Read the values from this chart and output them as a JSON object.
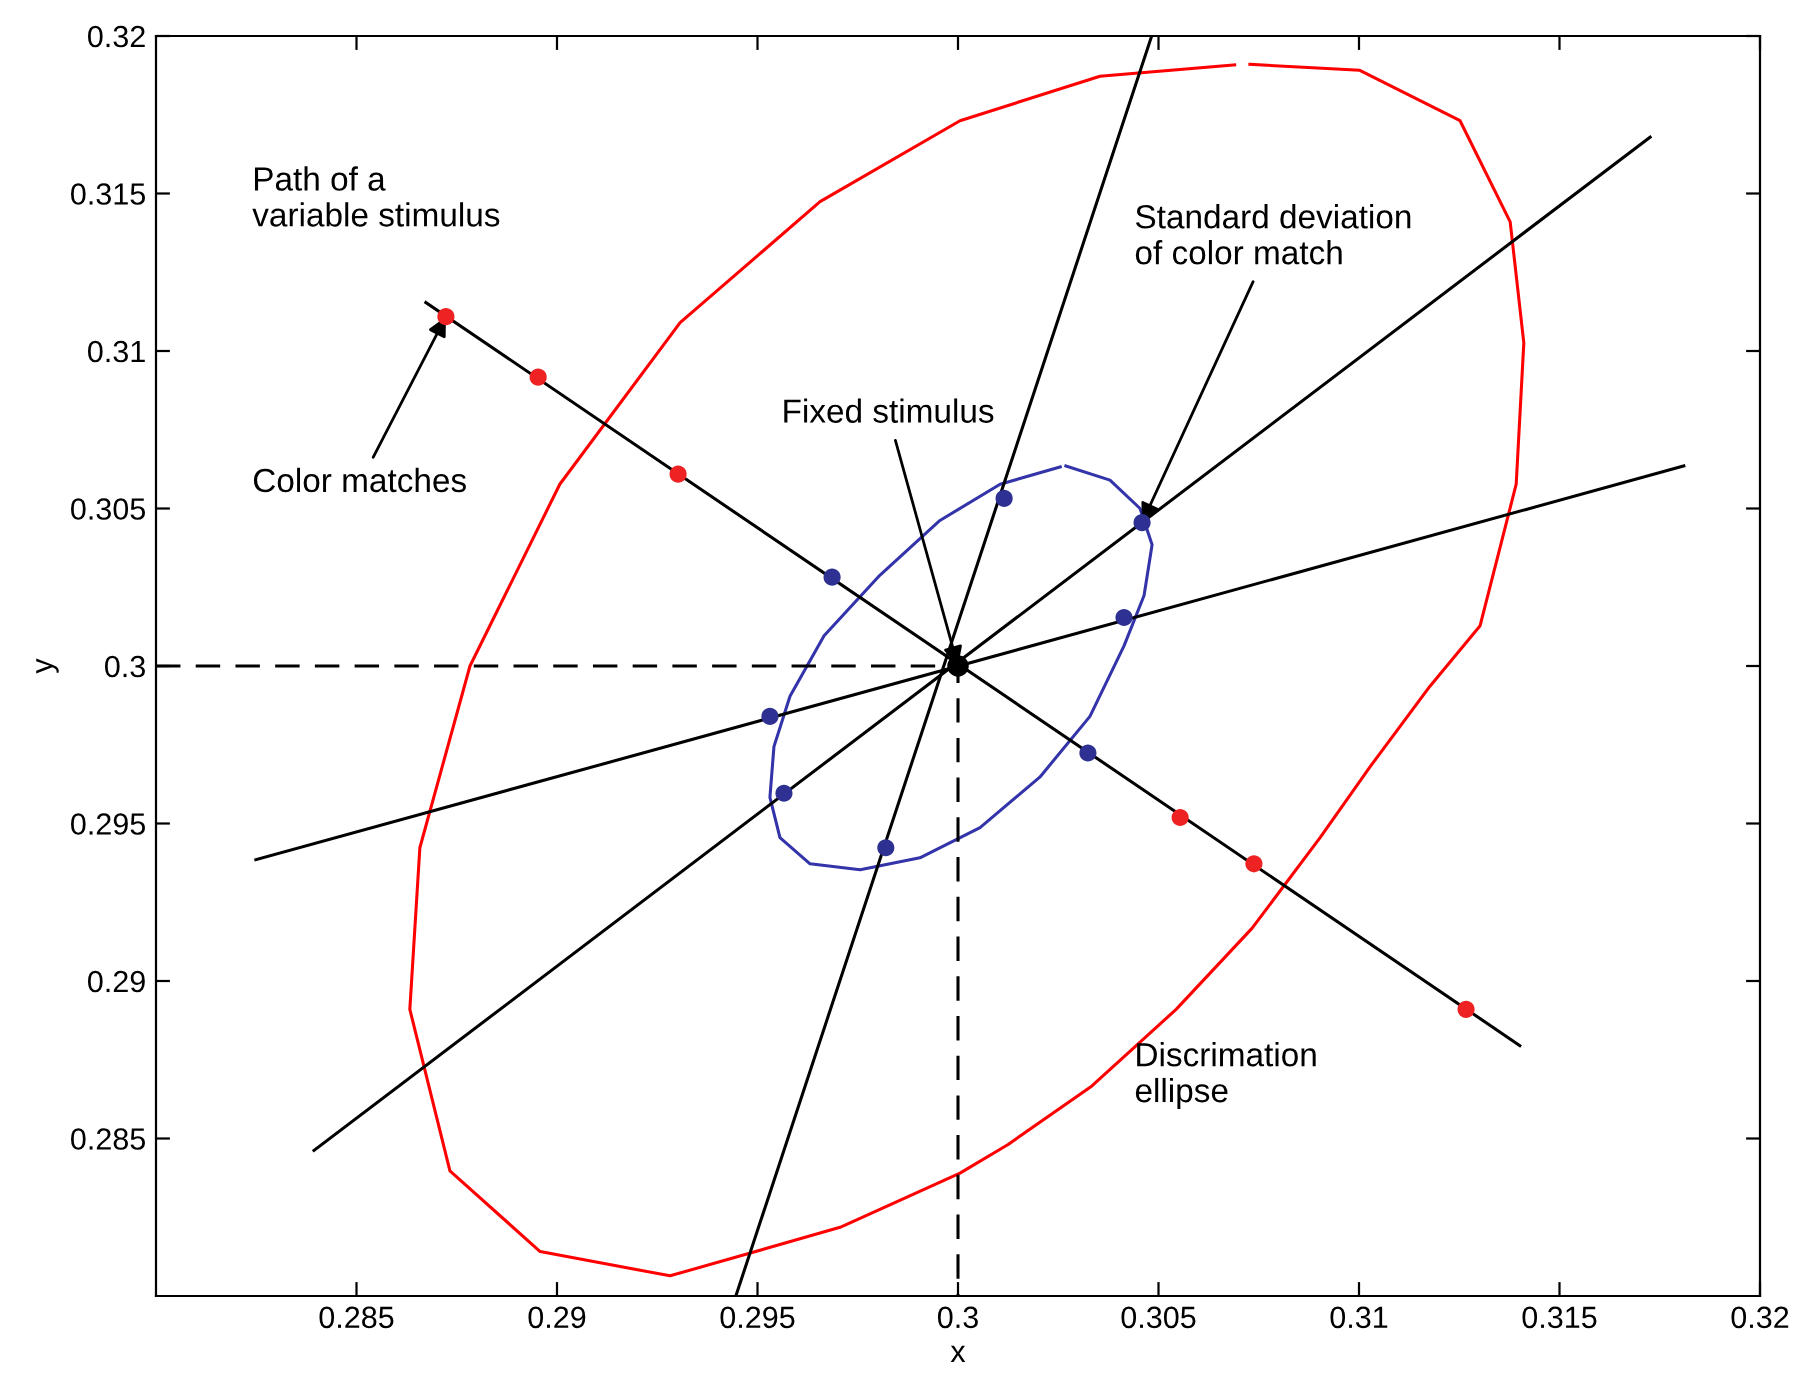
{
  "chart_data": {
    "type": "line",
    "xlabel": "x",
    "ylabel": "y",
    "xlim": [
      0.28,
      0.32
    ],
    "ylim": [
      0.28,
      0.32
    ],
    "xticks": [
      0.285,
      0.29,
      0.295,
      0.3,
      0.305,
      0.31,
      0.315,
      0.32
    ],
    "yticks": [
      0.285,
      0.29,
      0.295,
      0.3,
      0.305,
      0.31,
      0.315,
      0.32
    ],
    "grid": false,
    "series": [
      {
        "color": "#ff0000",
        "marker": "none",
        "line_style": "solid",
        "x": [
          0.30728,
          0.31002,
          0.31252,
          0.31377,
          0.31411,
          0.31392,
          0.31302,
          0.31177,
          0.31027,
          0.30903,
          0.30733,
          0.30544,
          0.30334,
          0.30125,
          0.30005,
          0.29706,
          0.29282,
          0.28958,
          0.28733,
          0.28633,
          0.28658,
          0.28783,
          0.29007,
          0.29307,
          0.29656,
          0.30005,
          0.30354,
          0.3069
        ],
        "values": [
          0.3191,
          0.31891,
          0.31731,
          0.3141,
          0.31026,
          0.30577,
          0.30128,
          0.29936,
          0.29679,
          0.29455,
          0.29167,
          0.2891,
          0.28667,
          0.28481,
          0.2839,
          0.28218,
          0.28064,
          0.28141,
          0.28397,
          0.2891,
          0.29423,
          0.3,
          0.30577,
          0.3109,
          0.31474,
          0.31731,
          0.31872,
          0.31908
        ]
      },
      {
        "color": "#3333aa",
        "marker": "none",
        "line_style": "solid",
        "x": [
          0.30269,
          0.30379,
          0.30454,
          0.30484,
          0.30464,
          0.30414,
          0.30329,
          0.30204,
          0.30055,
          0.29905,
          0.29756,
          0.29631,
          0.29556,
          0.29531,
          0.29541,
          0.29581,
          0.29666,
          0.29805,
          0.29955,
          0.30105,
          0.30255
        ],
        "values": [
          0.30635,
          0.3059,
          0.305,
          0.30385,
          0.30224,
          0.30064,
          0.2984,
          0.29647,
          0.29487,
          0.29391,
          0.29353,
          0.29372,
          0.29455,
          0.29583,
          0.29744,
          0.29904,
          0.30096,
          0.30288,
          0.30462,
          0.30577,
          0.30632
        ]
      },
      {
        "color": "#000000",
        "marker": "none",
        "line_style": "solid",
        "x": [
          0.28673,
          0.31401
        ],
        "values": [
          0.31154,
          0.28795
        ]
      },
      {
        "color": "#000000",
        "marker": "none",
        "line_style": "solid",
        "x": [
          0.28394,
          0.31726
        ],
        "values": [
          0.28462,
          0.31679
        ]
      },
      {
        "color": "#000000",
        "marker": "none",
        "line_style": "solid",
        "x": [
          0.28249,
          0.3181
        ],
        "values": [
          0.29385,
          0.30635
        ]
      },
      {
        "color": "#000000",
        "marker": "none",
        "line_style": "solid",
        "x": [
          0.29446,
          0.30483
        ],
        "values": [
          0.28,
          0.32
        ]
      },
      {
        "color": "#000000",
        "marker": "none",
        "line_style": "dashed",
        "x": [
          0.28,
          0.3,
          0.3
        ],
        "values": [
          0.3,
          0.3,
          0.28
        ]
      },
      {
        "type": "scatter",
        "color": "#ee2222",
        "marker": "circle",
        "x": [
          0.28723,
          0.28953,
          0.29302,
          0.30554,
          0.30738,
          0.31267
        ],
        "values": [
          0.31109,
          0.30917,
          0.30609,
          0.29519,
          0.29372,
          0.2891
        ]
      },
      {
        "type": "scatter",
        "color": "#2e3192",
        "marker": "circle",
        "x": [
          0.29686,
          0.30115,
          0.30459,
          0.30414,
          0.30324,
          0.2982,
          0.29566,
          0.29531
        ],
        "values": [
          0.30282,
          0.30532,
          0.30455,
          0.30154,
          0.29724,
          0.29423,
          0.29596,
          0.2984
        ]
      },
      {
        "type": "scatter",
        "color": "#000000",
        "marker": "circle",
        "x": [
          0.3
        ],
        "values": [
          0.3
        ]
      }
    ],
    "annotations": [
      "Path of a\nvariable stimulus",
      {
        "text": "Color matches",
        "x": 0.28723,
        "y": 0.31109
      },
      {
        "text": "Fixed stimulus",
        "x": 0.3,
        "y": 0.3
      },
      {
        "text": "Standard deviation\nof color match",
        "x": 0.30459,
        "y": 0.30455
      },
      "Discrimation\nellipse"
    ]
  }
}
